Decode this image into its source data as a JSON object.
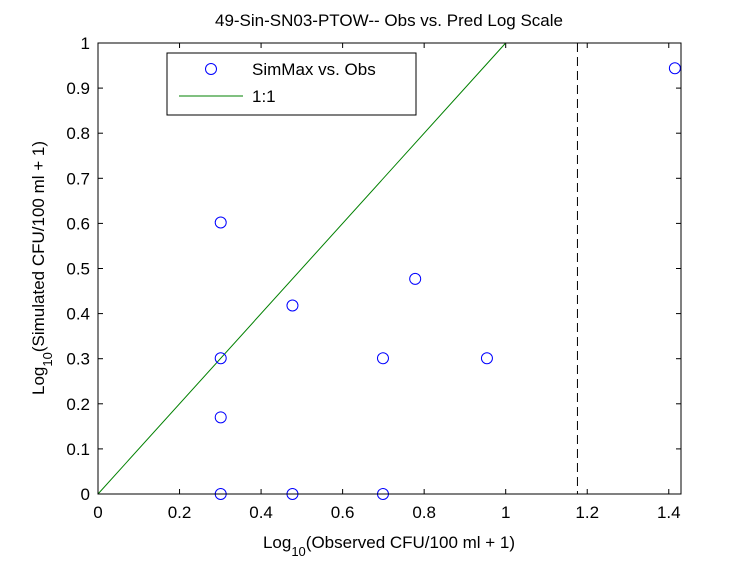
{
  "chart_data": {
    "type": "scatter",
    "title": "49-Sin-SN03-PTOW-- Obs vs. Pred Log Scale",
    "xlabel": {
      "prefix": "Log",
      "subscript": "10",
      "suffix": "(Observed CFU/100 ml + 1)"
    },
    "ylabel": {
      "prefix": "Log",
      "subscript": "10",
      "suffix": "(Simulated CFU/100 ml + 1)"
    },
    "xlim": [
      0,
      1.43
    ],
    "ylim": [
      0,
      1
    ],
    "x_ticks": [
      0,
      0.2,
      0.4,
      0.6,
      0.8,
      1,
      1.2,
      1.4
    ],
    "x_tick_labels": [
      "0",
      "0.2",
      "0.4",
      "0.6",
      "0.8",
      "1",
      "1.2",
      "1.4"
    ],
    "y_ticks": [
      0,
      0.1,
      0.2,
      0.3,
      0.4,
      0.5,
      0.6,
      0.7,
      0.8,
      0.9,
      1
    ],
    "y_tick_labels": [
      "0",
      "0.1",
      "0.2",
      "0.3",
      "0.4",
      "0.5",
      "0.6",
      "0.7",
      "0.8",
      "0.9",
      "1"
    ],
    "grid": false,
    "legend_position": "top-left",
    "series": [
      {
        "name": "SimMax vs. Obs",
        "marker": "circle",
        "color": "#0000ff",
        "points": [
          {
            "x": 0.301,
            "y": 0.602
          },
          {
            "x": 0.301,
            "y": 0.301
          },
          {
            "x": 0.301,
            "y": 0.17
          },
          {
            "x": 0.301,
            "y": 0.0
          },
          {
            "x": 0.477,
            "y": 0.418
          },
          {
            "x": 0.477,
            "y": 0.0
          },
          {
            "x": 0.699,
            "y": 0.301
          },
          {
            "x": 0.699,
            "y": 0.0
          },
          {
            "x": 0.778,
            "y": 0.477
          },
          {
            "x": 0.954,
            "y": 0.301
          },
          {
            "x": 1.415,
            "y": 0.944
          }
        ]
      },
      {
        "name": "1:1",
        "type": "line",
        "color": "#008000",
        "points": [
          {
            "x": 0,
            "y": 0
          },
          {
            "x": 1,
            "y": 1
          }
        ]
      }
    ],
    "reference_lines": [
      {
        "orientation": "vertical",
        "x": 1.176,
        "style": "dashed",
        "color": "#000000"
      }
    ]
  }
}
